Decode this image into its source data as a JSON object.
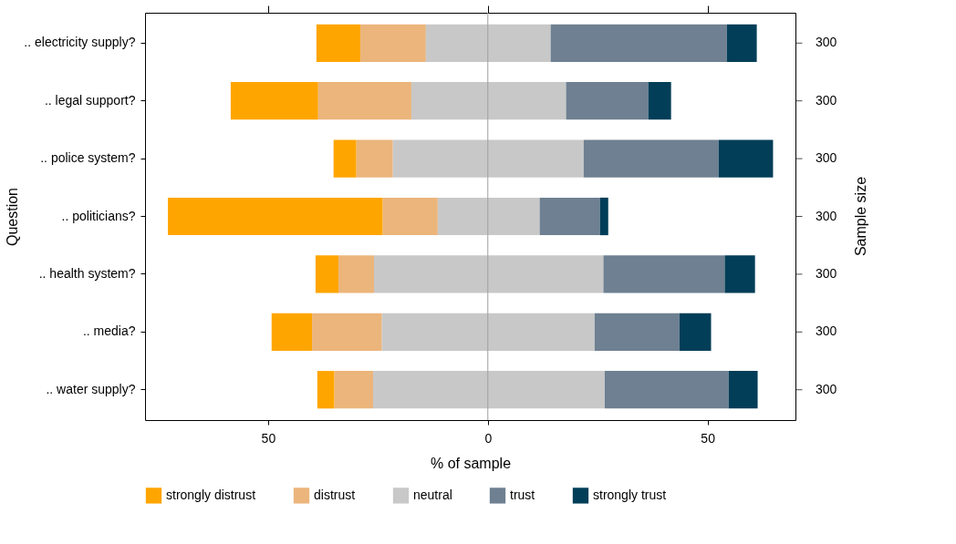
{
  "chart_data": {
    "type": "bar",
    "orientation": "horizontal",
    "xlabel": "% of sample",
    "ylabel": "Question",
    "y2label": "Sample size",
    "categories": [
      ".. electricity supply?",
      ".. legal support?",
      ".. police system?",
      ".. politicians?",
      ".. health system?",
      ".. media?",
      ".. water supply?"
    ],
    "y2_categories": [
      "300",
      "300",
      "300",
      "300",
      "300",
      "300",
      "300"
    ],
    "series": [
      {
        "name": "strongly distrust",
        "color": "#ffa500",
        "base": [
          -39.0,
          -58.5,
          -35.1,
          -72.8,
          -39.2,
          -49.2,
          -38.8
        ],
        "values": [
          10.0,
          19.9,
          5.2,
          48.9,
          5.2,
          9.2,
          3.9
        ]
      },
      {
        "name": "distrust",
        "color": "#ebb57b",
        "base": [
          -29.0,
          -38.6,
          -29.9,
          -23.9,
          -34.0,
          -40.0,
          -34.9
        ],
        "values": [
          14.9,
          21.2,
          8.3,
          12.5,
          8.1,
          15.9,
          8.8
        ]
      },
      {
        "name": "neutral",
        "color": "#c8c8c8",
        "base": [
          -14.1,
          -17.4,
          -21.6,
          -11.4,
          -25.9,
          -24.1,
          -26.1
        ],
        "values": [
          28.4,
          35.2,
          43.4,
          23.2,
          52.2,
          48.4,
          52.7
        ]
      },
      {
        "name": "trust",
        "color": "#6e8091",
        "base": [
          14.3,
          17.8,
          21.8,
          11.8,
          26.3,
          24.3,
          26.6
        ],
        "values": [
          40.1,
          18.7,
          30.7,
          13.7,
          27.6,
          19.3,
          28.2
        ]
      },
      {
        "name": "strongly trust",
        "color": "#023e58",
        "base": [
          54.4,
          36.5,
          52.5,
          25.5,
          53.9,
          43.6,
          54.8
        ],
        "values": [
          6.8,
          5.2,
          12.4,
          1.9,
          6.9,
          7.2,
          6.6
        ]
      }
    ],
    "xlim": [
      -78,
      70
    ],
    "xticks": [
      {
        "value": -50,
        "label": "50"
      },
      0,
      50
    ],
    "ref_lines": [
      {
        "axis": "x",
        "value": 0,
        "color": "#a0a0a0"
      }
    ],
    "legend": "bottom"
  }
}
